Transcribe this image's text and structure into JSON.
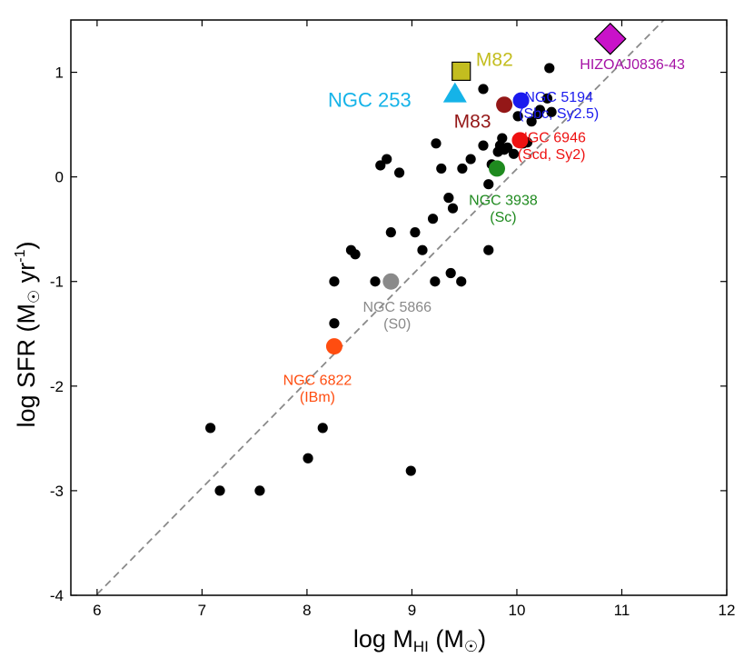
{
  "chart_data": {
    "type": "scatter",
    "xlim": [
      5.75,
      12
    ],
    "ylim": [
      -4,
      1.5
    ],
    "xticks": [
      6,
      7,
      8,
      9,
      10,
      11,
      12
    ],
    "yticks": [
      -4,
      -3,
      -2,
      -1,
      0,
      1
    ],
    "xtick_labels": [
      "6",
      "7",
      "8",
      "9",
      "10",
      "11",
      "12"
    ],
    "ytick_labels": [
      "-4",
      "-3",
      "-2",
      "-1",
      "0",
      "1"
    ],
    "xlabel": "log M_HI (M_☉)",
    "xlabel_main": "log M",
    "xlabel_sub": "HI",
    "xlabel_paren": " (M",
    "xlabel_close": ")",
    "ylabel": "log SFR (M_☉ yr^-1)",
    "ylabel_main": "log SFR (M",
    "ylabel_yr": " yr",
    "ylabel_exp": "-1",
    "ylabel_close": ")",
    "sun_symbol": "☉",
    "grid": false,
    "fit_line": {
      "style": "dashed",
      "color": "#8a8a8a",
      "x": [
        6,
        11.4
      ],
      "y": [
        -3.99,
        1.5
      ]
    },
    "series": [
      {
        "color": "#000000",
        "marker": "circle",
        "points": [
          [
            7.08,
            -2.4
          ],
          [
            7.17,
            -3.0
          ],
          [
            7.55,
            -3.0
          ],
          [
            8.01,
            -2.69
          ],
          [
            8.15,
            -2.4
          ],
          [
            8.99,
            -2.81
          ],
          [
            8.26,
            -1.4
          ],
          [
            8.26,
            -1.0
          ],
          [
            8.42,
            -0.7
          ],
          [
            8.46,
            -0.74
          ],
          [
            8.65,
            -1.0
          ],
          [
            8.8,
            -0.53
          ],
          [
            8.7,
            0.11
          ],
          [
            8.76,
            0.17
          ],
          [
            8.88,
            0.04
          ],
          [
            9.03,
            -0.53
          ],
          [
            9.1,
            -0.7
          ],
          [
            9.2,
            -0.4
          ],
          [
            9.22,
            -1.0
          ],
          [
            9.23,
            0.32
          ],
          [
            9.28,
            0.08
          ],
          [
            9.35,
            -0.2
          ],
          [
            9.37,
            -0.92
          ],
          [
            9.39,
            -0.3
          ],
          [
            9.47,
            -1.0
          ],
          [
            9.48,
            0.08
          ],
          [
            9.56,
            0.17
          ],
          [
            9.68,
            0.3
          ],
          [
            9.68,
            0.84
          ],
          [
            9.73,
            -0.07
          ],
          [
            9.73,
            -0.7
          ],
          [
            9.76,
            0.12
          ],
          [
            9.82,
            0.24
          ],
          [
            9.84,
            0.3
          ],
          [
            9.86,
            0.37
          ],
          [
            9.88,
            0.26
          ],
          [
            9.91,
            0.28
          ],
          [
            9.97,
            0.22
          ],
          [
            10.01,
            0.58
          ],
          [
            10.06,
            0.32
          ],
          [
            10.1,
            0.33
          ],
          [
            10.14,
            0.53
          ],
          [
            10.2,
            0.6
          ],
          [
            10.22,
            0.64
          ],
          [
            10.29,
            0.75
          ],
          [
            10.31,
            1.04
          ],
          [
            10.33,
            0.62
          ]
        ]
      }
    ],
    "highlighted": [
      {
        "name": "NGC 253",
        "x": 9.41,
        "y": 0.8,
        "marker": "triangle",
        "color": "#15b3e8"
      },
      {
        "name": "M82",
        "x": 9.47,
        "y": 1.01,
        "marker": "square",
        "color": "#c3bd1f"
      },
      {
        "name": "M83",
        "x": 9.88,
        "y": 0.69,
        "marker": "circle",
        "color": "#941717"
      },
      {
        "name": "NGC 5194",
        "x": 10.04,
        "y": 0.73,
        "marker": "circle",
        "color": "#1a1aee"
      },
      {
        "name": "NGC 6946",
        "x": 10.03,
        "y": 0.35,
        "marker": "circle",
        "color": "#ee1111"
      },
      {
        "name": "NGC 3938",
        "x": 9.81,
        "y": 0.08,
        "marker": "circle",
        "color": "#1f8a1f"
      },
      {
        "name": "NGC 5866",
        "x": 8.8,
        "y": -1.0,
        "marker": "circle",
        "color": "#8a8a8a"
      },
      {
        "name": "NGC 6822",
        "x": 8.26,
        "y": -1.62,
        "marker": "circle",
        "color": "#ff4d10"
      },
      {
        "name": "HIZOAJ0836-43",
        "x": 10.89,
        "y": 1.32,
        "marker": "diamond",
        "color": "#c912c9"
      }
    ],
    "annotations": [
      {
        "lines": [
          "NGC 253"
        ],
        "x": 8.2,
        "y": 0.67,
        "color": "#15b3e8",
        "size": 22,
        "anchor": "start"
      },
      {
        "lines": [
          "M82"
        ],
        "x": 9.61,
        "y": 1.06,
        "color": "#c3bd1f",
        "size": 21,
        "anchor": "start"
      },
      {
        "lines": [
          "M83"
        ],
        "x": 9.4,
        "y": 0.47,
        "color": "#941717",
        "size": 21,
        "anchor": "start"
      },
      {
        "lines": [
          "NGC 5194",
          "(Sbc, Sy2.5)"
        ],
        "x": 10.4,
        "y": 0.72,
        "color": "#1a1aee",
        "size": 16,
        "anchor": "middle"
      },
      {
        "lines": [
          "NGC 6946",
          "(Scd, Sy2)"
        ],
        "x": 10.33,
        "y": 0.33,
        "color": "#ee1111",
        "size": 16,
        "anchor": "middle"
      },
      {
        "lines": [
          "NGC 3938",
          "(Sc)"
        ],
        "x": 9.87,
        "y": -0.27,
        "color": "#1f8a1f",
        "size": 16,
        "anchor": "middle"
      },
      {
        "lines": [
          "NGC 5866",
          "(S0)"
        ],
        "x": 8.86,
        "y": -1.29,
        "color": "#8a8a8a",
        "size": 16,
        "anchor": "middle"
      },
      {
        "lines": [
          "NGC 6822",
          "(IBm)"
        ],
        "x": 8.1,
        "y": -1.99,
        "color": "#ff4d10",
        "size": 16,
        "anchor": "middle"
      },
      {
        "lines": [
          "HIZOAJ0836-43"
        ],
        "x": 10.6,
        "y": 1.03,
        "color": "#a512a5",
        "size": 16,
        "anchor": "start"
      }
    ]
  }
}
